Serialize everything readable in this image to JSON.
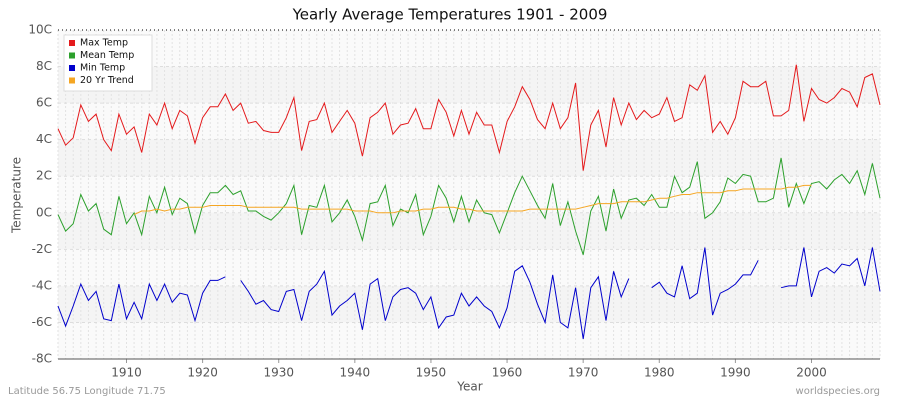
{
  "chart_data": {
    "type": "line",
    "title": "Yearly Average Temperatures 1901 - 2009",
    "x_label": "Year",
    "y_label": "Temperature",
    "footer_left": "Latitude 56.75 Longitude 71.75",
    "footer_right": "worldspecies.org",
    "xlim": [
      1901,
      2009
    ],
    "xticks": [
      1910,
      1920,
      1930,
      1940,
      1950,
      1960,
      1970,
      1980,
      1990,
      2000
    ],
    "ylim": [
      -8,
      10
    ],
    "yticks": [
      {
        "value": -8,
        "label": "-8C"
      },
      {
        "value": -6,
        "label": "-6C"
      },
      {
        "value": -4,
        "label": "-4C"
      },
      {
        "value": -2,
        "label": "-2C"
      },
      {
        "value": 0,
        "label": "0C"
      },
      {
        "value": 2,
        "label": "2C"
      },
      {
        "value": 4,
        "label": "4C"
      },
      {
        "value": 6,
        "label": "6C"
      },
      {
        "value": 8,
        "label": "8C"
      },
      {
        "value": 10,
        "label": "10C"
      }
    ],
    "grid": true,
    "legend": "top-left",
    "x": [
      1901,
      1902,
      1903,
      1904,
      1905,
      1906,
      1907,
      1908,
      1909,
      1910,
      1911,
      1912,
      1913,
      1914,
      1915,
      1916,
      1917,
      1918,
      1919,
      1920,
      1921,
      1922,
      1923,
      1924,
      1925,
      1926,
      1927,
      1928,
      1929,
      1930,
      1931,
      1932,
      1933,
      1934,
      1935,
      1936,
      1937,
      1938,
      1939,
      1940,
      1941,
      1942,
      1943,
      1944,
      1945,
      1946,
      1947,
      1948,
      1949,
      1950,
      1951,
      1952,
      1953,
      1954,
      1955,
      1956,
      1957,
      1958,
      1959,
      1960,
      1961,
      1962,
      1963,
      1964,
      1965,
      1966,
      1967,
      1968,
      1969,
      1970,
      1971,
      1972,
      1973,
      1974,
      1975,
      1976,
      1977,
      1978,
      1979,
      1980,
      1981,
      1982,
      1983,
      1984,
      1985,
      1986,
      1987,
      1988,
      1989,
      1990,
      1991,
      1992,
      1993,
      1994,
      1995,
      1996,
      1997,
      1998,
      1999,
      2000,
      2001,
      2002,
      2003,
      2004,
      2005,
      2006,
      2007,
      2008,
      2009
    ],
    "series": [
      {
        "name": "Max Temp",
        "color": "#e41a1c",
        "values": [
          4.6,
          3.7,
          4.1,
          5.9,
          5.0,
          5.4,
          4.0,
          3.4,
          5.4,
          4.3,
          4.7,
          3.3,
          5.4,
          4.8,
          6.0,
          4.6,
          5.6,
          5.3,
          3.8,
          5.2,
          5.8,
          5.8,
          6.5,
          5.6,
          6.0,
          4.9,
          5.0,
          4.5,
          4.4,
          4.4,
          5.2,
          6.3,
          3.4,
          5.0,
          5.1,
          6.0,
          4.4,
          5.0,
          5.6,
          4.9,
          3.1,
          5.2,
          5.5,
          6.0,
          4.3,
          4.8,
          4.9,
          5.7,
          4.6,
          4.6,
          6.2,
          5.5,
          4.2,
          5.6,
          4.3,
          5.5,
          4.8,
          4.8,
          3.3,
          5.0,
          5.8,
          6.9,
          6.2,
          5.1,
          4.6,
          6.0,
          4.6,
          5.2,
          7.1,
          2.3,
          4.8,
          5.6,
          3.6,
          6.3,
          4.8,
          6.0,
          5.1,
          5.6,
          5.2,
          5.4,
          6.3,
          5.0,
          5.2,
          7.0,
          6.7,
          7.5,
          4.4,
          5.0,
          4.3,
          5.2,
          7.2,
          6.9,
          6.9,
          7.2,
          5.3,
          5.3,
          5.6,
          8.1,
          5.0,
          6.8,
          6.2,
          6.0,
          6.3,
          6.8,
          6.6,
          5.8,
          7.4,
          7.6,
          5.9
        ]
      },
      {
        "name": "Mean Temp",
        "color": "#2ca02c",
        "values": [
          -0.1,
          -1.0,
          -0.6,
          1.0,
          0.1,
          0.5,
          -0.9,
          -1.2,
          0.9,
          -0.6,
          0.0,
          -1.2,
          0.9,
          0.0,
          1.4,
          -0.1,
          0.8,
          0.5,
          -1.1,
          0.4,
          1.1,
          1.1,
          1.5,
          1.0,
          1.2,
          0.1,
          0.1,
          -0.2,
          -0.4,
          0.0,
          0.5,
          1.5,
          -1.2,
          0.4,
          0.3,
          1.5,
          -0.5,
          0.0,
          0.7,
          -0.2,
          -1.5,
          0.5,
          0.6,
          1.5,
          -0.7,
          0.2,
          0.0,
          1.0,
          -1.2,
          -0.2,
          1.5,
          0.8,
          -0.5,
          0.9,
          -0.5,
          0.7,
          0.0,
          -0.1,
          -1.1,
          0.0,
          1.1,
          2.0,
          1.2,
          0.4,
          -0.3,
          1.6,
          -0.7,
          0.6,
          -1.0,
          -2.3,
          0.1,
          0.9,
          -1.0,
          1.3,
          -0.3,
          0.7,
          0.8,
          0.4,
          1.0,
          0.3,
          0.3,
          2.0,
          1.1,
          1.4,
          2.8,
          -0.3,
          0.0,
          0.6,
          1.9,
          1.6,
          2.1,
          2.0,
          0.6,
          0.6,
          0.8,
          3.0,
          0.3,
          1.6,
          0.5,
          1.6,
          1.7,
          1.3,
          1.8,
          2.1,
          1.6,
          2.3,
          1.0,
          2.7,
          0.8
        ]
      },
      {
        "name": "Min Temp",
        "color": "#0000cc",
        "values": [
          -5.1,
          -6.2,
          -5.1,
          -3.9,
          -4.8,
          -4.3,
          -5.8,
          -5.9,
          -3.9,
          -5.8,
          -4.9,
          -5.8,
          -3.9,
          -4.8,
          -3.9,
          -4.9,
          -4.4,
          -4.5,
          -5.9,
          -4.4,
          -3.7,
          -3.7,
          -3.5,
          null,
          -3.7,
          -4.3,
          -5.0,
          -4.8,
          -5.3,
          -5.4,
          -4.3,
          -4.2,
          -5.9,
          -4.3,
          -3.9,
          -3.2,
          -5.6,
          -5.1,
          -4.8,
          -4.4,
          -6.4,
          -3.9,
          -3.6,
          -5.9,
          -4.6,
          -4.2,
          -4.1,
          -4.4,
          -5.3,
          -4.6,
          -6.3,
          -5.7,
          -5.6,
          -4.4,
          -5.1,
          -4.6,
          -5.1,
          -5.4,
          -6.3,
          -5.2,
          -3.2,
          -2.9,
          -3.8,
          -5.0,
          -6.0,
          -3.4,
          -6.0,
          -6.3,
          -4.1,
          -6.9,
          -4.1,
          -3.5,
          -5.9,
          -3.2,
          -4.6,
          -3.6,
          null,
          null,
          -4.1,
          -3.8,
          -4.4,
          -4.6,
          -2.9,
          -4.7,
          -4.4,
          -1.9,
          -5.6,
          -4.4,
          -4.2,
          -3.9,
          -3.4,
          -3.4,
          -2.6,
          null,
          null,
          -4.1,
          -4.0,
          -4.0,
          -1.9,
          -4.6,
          -3.2,
          -3.0,
          -3.3,
          -2.8,
          -2.9,
          -2.5,
          -4.0,
          -1.9,
          -4.3
        ]
      },
      {
        "name": "20 Yr Trend",
        "color": "#f5a623",
        "values": [
          null,
          null,
          null,
          null,
          null,
          null,
          null,
          null,
          null,
          null,
          -0.1,
          0.1,
          0.1,
          0.2,
          0.1,
          0.2,
          0.2,
          0.3,
          0.3,
          0.3,
          0.4,
          0.4,
          0.4,
          0.4,
          0.4,
          0.3,
          0.3,
          0.3,
          0.3,
          0.3,
          0.3,
          0.3,
          0.2,
          0.2,
          0.2,
          0.2,
          0.2,
          0.2,
          0.2,
          0.1,
          0.1,
          0.1,
          0.0,
          0.0,
          0.0,
          0.1,
          0.1,
          0.1,
          0.2,
          0.2,
          0.3,
          0.3,
          0.3,
          0.2,
          0.2,
          0.1,
          0.1,
          0.1,
          0.1,
          0.1,
          0.1,
          0.1,
          0.2,
          0.2,
          0.2,
          0.2,
          0.2,
          0.2,
          0.2,
          0.3,
          0.4,
          0.5,
          0.5,
          0.5,
          0.6,
          0.6,
          0.6,
          0.6,
          0.7,
          0.8,
          0.8,
          0.9,
          1.0,
          1.0,
          1.1,
          1.1,
          1.1,
          1.1,
          1.2,
          1.2,
          1.3,
          1.3,
          1.3,
          1.3,
          1.3,
          1.3,
          1.4,
          1.4,
          1.5,
          1.5,
          null,
          null,
          null,
          null,
          null,
          null,
          null,
          null,
          null
        ]
      }
    ]
  }
}
